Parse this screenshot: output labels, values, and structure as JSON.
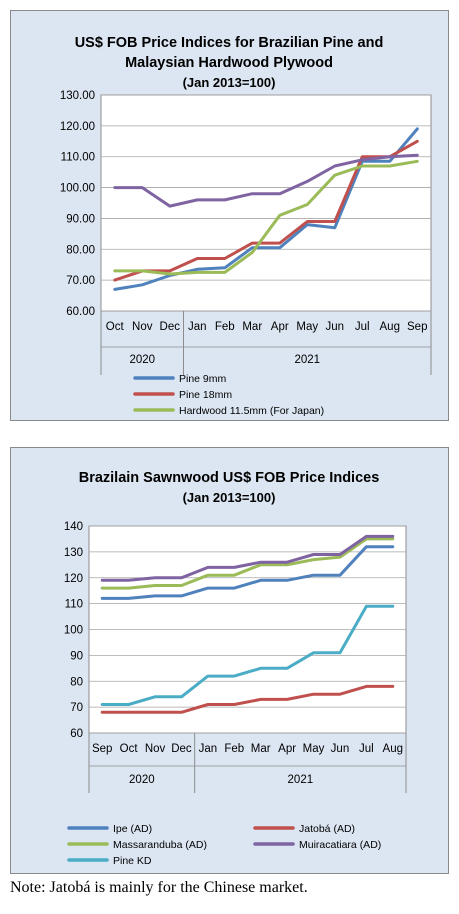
{
  "charts": [
    {
      "title_line1": "US$ FOB Price Indices for Brazilian Pine and",
      "title_line2": "Malaysian Hardwood Plywood",
      "subtitle": "(Jan 2013=100)"
    },
    {
      "title_line1": "Brazilain Sawnwood US$ FOB Price Indices",
      "title_line2": "",
      "subtitle": "(Jan 2013=100)"
    }
  ],
  "note": "Note: Jatobá is mainly for the Chinese market.",
  "chart_data": [
    {
      "type": "line",
      "title": "US$ FOB Price Indices for Brazilian Pine and Malaysian Hardwood Plywood",
      "subtitle": "(Jan 2013=100)",
      "categories": [
        "Oct",
        "Nov",
        "Dec",
        "Jan",
        "Feb",
        "Mar",
        "Apr",
        "May",
        "Jun",
        "Jul",
        "Aug",
        "Sep"
      ],
      "year_groups": [
        {
          "label": "2020",
          "start": 0,
          "end": 2
        },
        {
          "label": "2021",
          "start": 3,
          "end": 11
        }
      ],
      "ylim": [
        60,
        130
      ],
      "yticks": [
        "60.00",
        "70.00",
        "80.00",
        "90.00",
        "100.00",
        "110.00",
        "120.00",
        "130.00"
      ],
      "grid": true,
      "legend_position": "bottom",
      "series": [
        {
          "name": "Pine 9mm",
          "color": "#4f81bd",
          "values": [
            67,
            68.5,
            71.5,
            73.5,
            74,
            80.5,
            80.5,
            88,
            87,
            108.5,
            108.5,
            119
          ]
        },
        {
          "name": "Pine 18mm",
          "color": "#c0504d",
          "values": [
            70,
            73,
            73,
            77,
            77,
            82,
            82,
            89,
            89,
            110,
            110,
            115
          ]
        },
        {
          "name": "Hardwood 11.5mm (For Japan)",
          "color": "#9bbb59",
          "values": [
            73,
            73,
            72,
            72.5,
            72.5,
            79,
            91,
            94.5,
            104,
            107,
            107,
            108.5
          ]
        },
        {
          "name": "",
          "color": "#8064a2",
          "values": [
            100,
            100,
            94,
            96,
            96,
            98,
            98,
            102,
            107,
            109,
            110,
            110.5
          ]
        }
      ]
    },
    {
      "type": "line",
      "title": "Brazilain Sawnwood US$ FOB Price Indices",
      "subtitle": "(Jan 2013=100)",
      "categories": [
        "Sep",
        "Oct",
        "Nov",
        "Dec",
        "Jan",
        "Feb",
        "Mar",
        "Apr",
        "May",
        "Jun",
        "Jul",
        "Aug"
      ],
      "year_groups": [
        {
          "label": "2020",
          "start": 0,
          "end": 3
        },
        {
          "label": "2021",
          "start": 4,
          "end": 11
        }
      ],
      "ylim": [
        60,
        140
      ],
      "yticks": [
        "60",
        "70",
        "80",
        "90",
        "100",
        "110",
        "120",
        "130",
        "140"
      ],
      "grid": true,
      "legend_position": "bottom",
      "series": [
        {
          "name": "Ipe (AD)",
          "color": "#4f81bd",
          "values": [
            112,
            112,
            113,
            113,
            116,
            116,
            119,
            119,
            121,
            121,
            132,
            132
          ]
        },
        {
          "name": "Jatobá (AD)",
          "color": "#c0504d",
          "values": [
            68,
            68,
            68,
            68,
            71,
            71,
            73,
            73,
            75,
            75,
            78,
            78
          ]
        },
        {
          "name": "Massaranduba (AD)",
          "color": "#9bbb59",
          "values": [
            116,
            116,
            117,
            117,
            121,
            121,
            125,
            125,
            127,
            128,
            135,
            135
          ]
        },
        {
          "name": "Muiracatiara (AD)",
          "color": "#8064a2",
          "values": [
            119,
            119,
            120,
            120,
            124,
            124,
            126,
            126,
            129,
            129,
            136,
            136
          ]
        },
        {
          "name": "Pine KD",
          "color": "#4bacc6",
          "values": [
            71,
            71,
            74,
            74,
            82,
            82,
            85,
            85,
            91,
            91,
            109,
            109
          ]
        }
      ]
    }
  ]
}
